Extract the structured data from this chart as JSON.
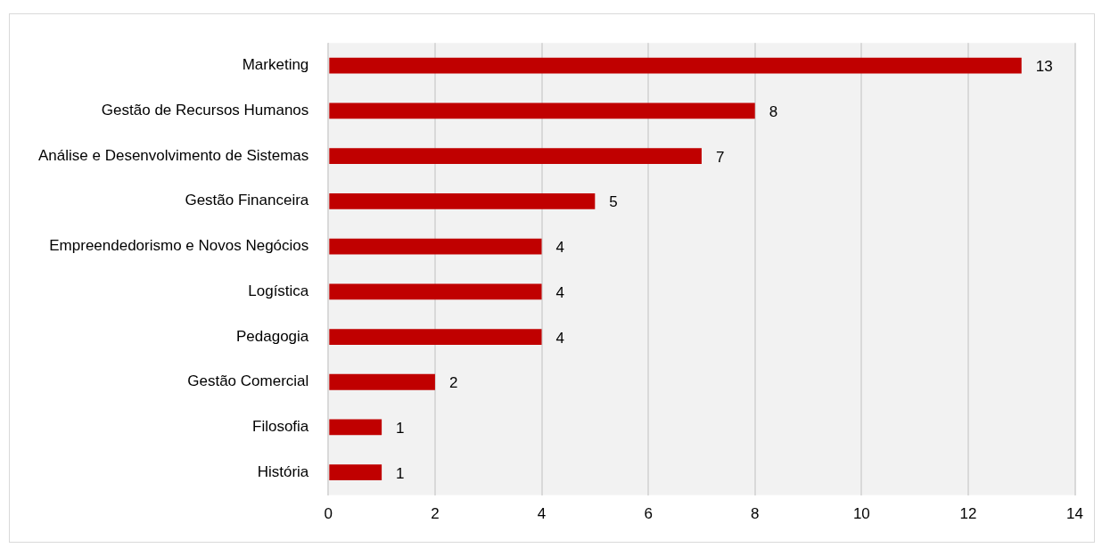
{
  "chart_data": {
    "type": "bar",
    "orientation": "horizontal",
    "categories": [
      "Marketing",
      "Gestão de Recursos Humanos",
      "Análise e Desenvolvimento de Sistemas",
      "Gestão Financeira",
      "Empreendedorismo e Novos Negócios",
      "Logística",
      "Pedagogia",
      "Gestão Comercial",
      "Filosofia",
      "História"
    ],
    "values": [
      13,
      8,
      7,
      5,
      4,
      4,
      4,
      2,
      1,
      1
    ],
    "color": "#c00000",
    "xlim": [
      0,
      14
    ],
    "xticks": [
      0,
      2,
      4,
      6,
      8,
      10,
      12,
      14
    ],
    "grid": "x",
    "legend": false,
    "data_labels": true
  }
}
